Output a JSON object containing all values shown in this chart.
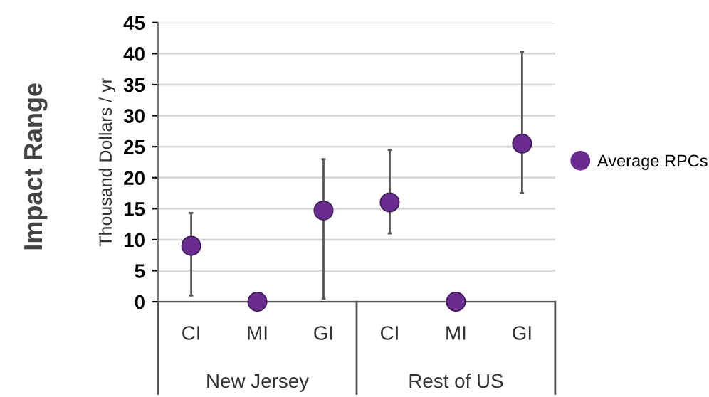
{
  "chart_data": {
    "type": "scatter",
    "ylabel": "Thousand Dollars / yr",
    "categories": [
      "CI",
      "MI",
      "GI",
      "CI",
      "MI",
      "GI"
    ],
    "series": [
      {
        "name": "Average RPCs",
        "color": "#6a2c91",
        "values": [
          9,
          0,
          14.7,
          16,
          0,
          25.5
        ],
        "errors": [
          [
            1,
            14.3
          ],
          null,
          [
            0.5,
            23
          ],
          [
            11,
            24.5
          ],
          null,
          [
            17.5,
            40.3
          ]
        ]
      }
    ],
    "ylim": [
      0,
      45
    ],
    "yticks": [
      0,
      5,
      10,
      15,
      20,
      25,
      30,
      35,
      40,
      45
    ],
    "grid": "y",
    "legend": "right",
    "marker": "circle",
    "annotations": [
      "New Jersey",
      "Rest of US",
      "Impact Range"
    ]
  }
}
